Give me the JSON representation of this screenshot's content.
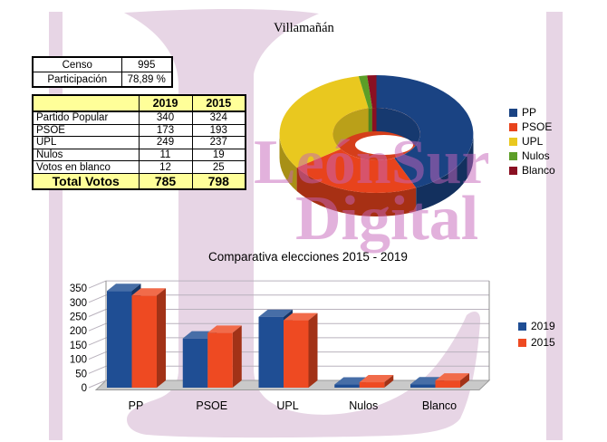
{
  "page": {
    "title": "Villamañán"
  },
  "watermark": {
    "line1": "LeónSur",
    "line2": "Digital"
  },
  "summary_table": {
    "rows": [
      [
        "Censo",
        "995"
      ],
      [
        "Participación",
        "78,89 %"
      ]
    ]
  },
  "results_table": {
    "year_columns": [
      "2019",
      "2015"
    ],
    "rows": [
      {
        "label": "Partido Popular",
        "v2019": "340",
        "v2015": "324"
      },
      {
        "label": "PSOE",
        "v2019": "173",
        "v2015": "193"
      },
      {
        "label": "UPL",
        "v2019": "249",
        "v2015": "237"
      },
      {
        "label": "Nulos",
        "v2019": "11",
        "v2015": "19"
      },
      {
        "label": "Votos en blanco",
        "v2019": "12",
        "v2015": "25"
      }
    ],
    "total": {
      "label": "Total Votos",
      "v2019": "785",
      "v2015": "798"
    }
  },
  "chart_data": [
    {
      "type": "pie",
      "subtype": "3d-donut",
      "data_year": "2019",
      "labels": [
        "PP",
        "PSOE",
        "UPL",
        "Nulos",
        "Blanco"
      ],
      "values": [
        340,
        173,
        249,
        11,
        12
      ],
      "colors": [
        "#1a4383",
        "#e8431c",
        "#e9c81f",
        "#5c9e27",
        "#8a1022"
      ],
      "legend_position": "right"
    },
    {
      "type": "bar",
      "subtype": "3d-grouped",
      "title": "Comparativa elecciones 2015 - 2019",
      "categories": [
        "PP",
        "PSOE",
        "UPL",
        "Nulos",
        "Blanco"
      ],
      "series": [
        {
          "name": "2019",
          "color": "#1f4e94",
          "values": [
            340,
            173,
            249,
            11,
            12
          ]
        },
        {
          "name": "2015",
          "color": "#ee4a22",
          "values": [
            324,
            193,
            237,
            19,
            25
          ]
        }
      ],
      "ylim": [
        0,
        350
      ],
      "ytick_step": 50,
      "grid": true,
      "legend_position": "right",
      "xlabel": "",
      "ylabel": ""
    }
  ]
}
